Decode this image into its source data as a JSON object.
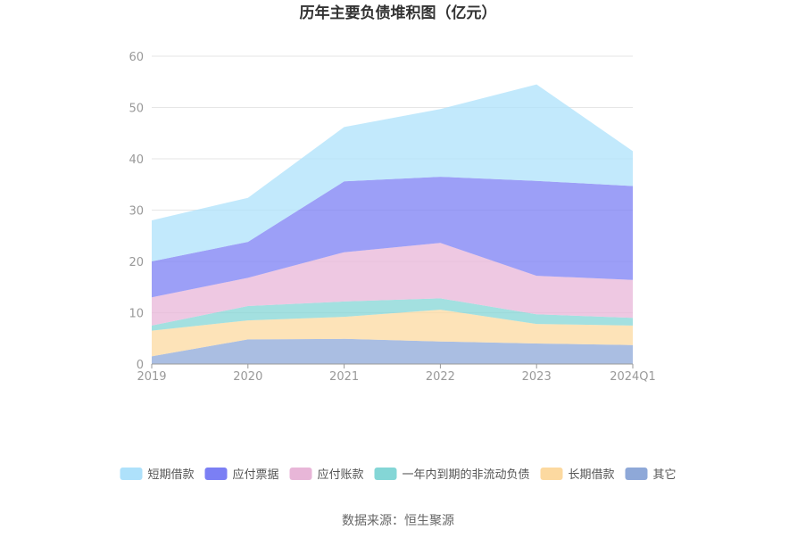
{
  "chart_data": {
    "type": "area",
    "stacked": true,
    "title": "历年主要负债堆积图（亿元）",
    "categories": [
      "2019",
      "2020",
      "2021",
      "2022",
      "2023",
      "2024Q1"
    ],
    "ylim": [
      0,
      60
    ],
    "yticks": [
      "0",
      "10",
      "20",
      "30",
      "40",
      "50",
      "60"
    ],
    "grid": true,
    "legend_position": "bottom",
    "series": [
      {
        "name": "其它",
        "color": "#8ea8d8",
        "values": [
          1.5,
          4.8,
          4.9,
          4.4,
          4.0,
          3.7
        ]
      },
      {
        "name": "长期借款",
        "color": "#fcd9a0",
        "values": [
          5.0,
          3.7,
          4.3,
          6.2,
          3.8,
          3.8
        ]
      },
      {
        "name": "一年内到期的非流动负债",
        "color": "#84d6d6",
        "values": [
          1.0,
          2.8,
          3.0,
          2.2,
          1.9,
          1.5
        ]
      },
      {
        "name": "应付账款",
        "color": "#e8b6d8",
        "values": [
          5.5,
          5.5,
          9.6,
          10.8,
          7.5,
          7.4
        ]
      },
      {
        "name": "应付票据",
        "color": "#7b7ff4",
        "values": [
          7.0,
          7.0,
          13.8,
          12.9,
          18.5,
          18.3
        ]
      },
      {
        "name": "短期借款",
        "color": "#aee1fb",
        "values": [
          8.0,
          8.6,
          10.6,
          13.2,
          18.8,
          6.8
        ]
      }
    ],
    "legend_order": [
      "短期借款",
      "应付票据",
      "应付账款",
      "一年内到期的非流动负债",
      "长期借款",
      "其它"
    ]
  },
  "source": "数据来源：恒生聚源"
}
